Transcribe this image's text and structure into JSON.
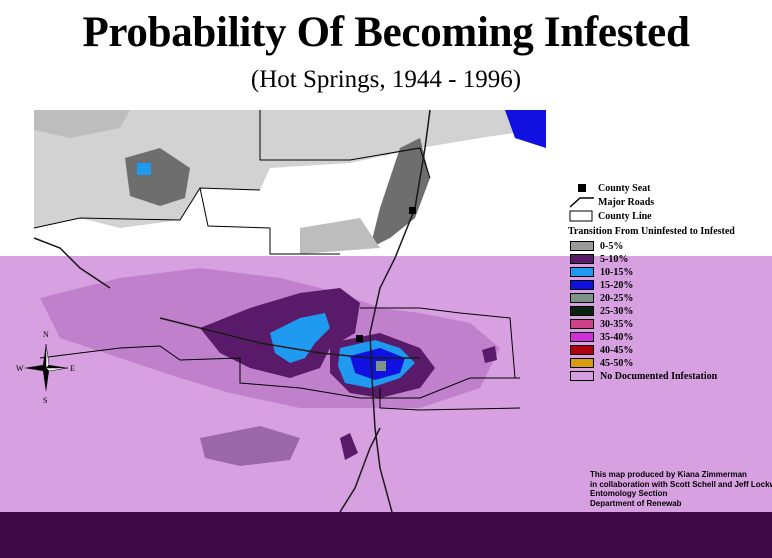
{
  "title": "Probability Of Becoming Infested",
  "subtitle": "(Hot Springs, 1944 - 1996)",
  "legend": {
    "symbols": [
      {
        "name": "county-seat-icon",
        "label": "County Seat"
      },
      {
        "name": "major-roads-icon",
        "label": "Major Roads"
      },
      {
        "name": "county-line-icon",
        "label": "County Line"
      }
    ],
    "heading": "Transition From Uninfested to Infested",
    "classes": [
      {
        "label": "0-5%",
        "color": "#9a9a9a"
      },
      {
        "label": "5-10%",
        "color": "#5a1a6a"
      },
      {
        "label": "10-15%",
        "color": "#1e9bf0"
      },
      {
        "label": "15-20%",
        "color": "#1010e0"
      },
      {
        "label": "20-25%",
        "color": "#7f9488"
      },
      {
        "label": "25-30%",
        "color": "#0a220f"
      },
      {
        "label": "30-35%",
        "color": "#cf3f88"
      },
      {
        "label": "35-40%",
        "color": "#cf2fd6"
      },
      {
        "label": "40-45%",
        "color": "#b00010"
      },
      {
        "label": "45-50%",
        "color": "#d89a10"
      },
      {
        "label": "No Documented Infestation",
        "color": "#d7a0e0"
      }
    ]
  },
  "compass": {
    "n": "N",
    "s": "S",
    "e": "E",
    "w": "W"
  },
  "credits": [
    "This map produced by Kiana Zimmerman",
    "in collaboration with Scott Schell and Jeff Lockw",
    "Entomology Section",
    "Department of Renewab"
  ],
  "colors": {
    "land_light_gray": "#d2d2d2",
    "land_dark_gray": "#6e6e6e",
    "land_pink": "#d7a0e0",
    "land_pink_medium": "#c080cc",
    "land_purple": "#5a1a6a",
    "bottom_band": "#3f0a47"
  }
}
